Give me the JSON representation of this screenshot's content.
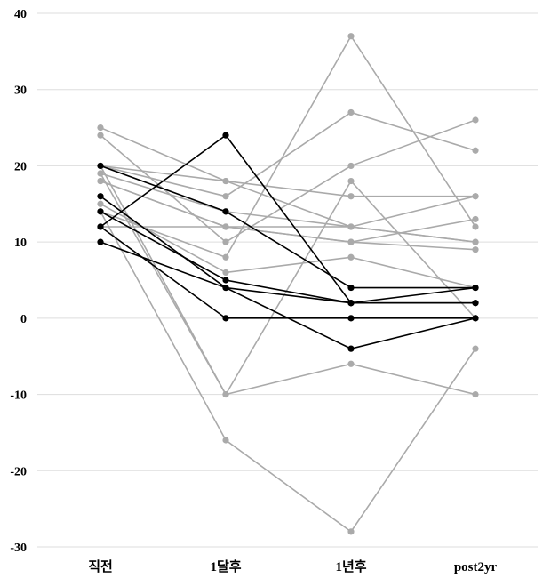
{
  "chart_data": {
    "type": "line",
    "title": "",
    "xlabel": "",
    "ylabel": "",
    "categories": [
      "직전",
      "1달후",
      "1년후",
      "post2yr"
    ],
    "yticks": [
      40,
      30,
      20,
      10,
      0,
      -10,
      -20,
      -30
    ],
    "ylim": [
      -30,
      40
    ],
    "grid": true,
    "legend": "none",
    "colors": {
      "gray": "#aaaaaa",
      "black": "#000000",
      "grid": "#dddddd"
    },
    "series": [
      {
        "color": "gray",
        "values": [
          25,
          18,
          12,
          16
        ]
      },
      {
        "color": "gray",
        "values": [
          24,
          10,
          20,
          26
        ]
      },
      {
        "color": "gray",
        "values": [
          20,
          18,
          16,
          16
        ]
      },
      {
        "color": "gray",
        "values": [
          20,
          16,
          27,
          22
        ]
      },
      {
        "color": "gray",
        "values": [
          19,
          14,
          12,
          10
        ]
      },
      {
        "color": "gray",
        "values": [
          18,
          12,
          10,
          13
        ]
      },
      {
        "color": "gray",
        "values": [
          18,
          12,
          10,
          9
        ]
      },
      {
        "color": "gray",
        "values": [
          14,
          8,
          37,
          12
        ]
      },
      {
        "color": "gray",
        "values": [
          15,
          6,
          8,
          4
        ]
      },
      {
        "color": "gray",
        "values": [
          12,
          12,
          12,
          10
        ]
      },
      {
        "color": "gray",
        "values": [
          19,
          -10,
          -6,
          -10
        ]
      },
      {
        "color": "gray",
        "values": [
          14,
          -16,
          -28,
          -4
        ]
      },
      {
        "color": "gray",
        "values": [
          20,
          -10,
          18,
          0
        ]
      },
      {
        "color": "black",
        "values": [
          12,
          24,
          2,
          2
        ]
      },
      {
        "color": "black",
        "values": [
          16,
          4,
          -4,
          0
        ]
      },
      {
        "color": "black",
        "values": [
          20,
          14,
          4,
          4
        ]
      },
      {
        "color": "black",
        "values": [
          14,
          5,
          2,
          4
        ]
      },
      {
        "color": "black",
        "values": [
          12,
          0,
          0,
          0
        ]
      },
      {
        "color": "black",
        "values": [
          10,
          4,
          2,
          2
        ]
      }
    ]
  }
}
